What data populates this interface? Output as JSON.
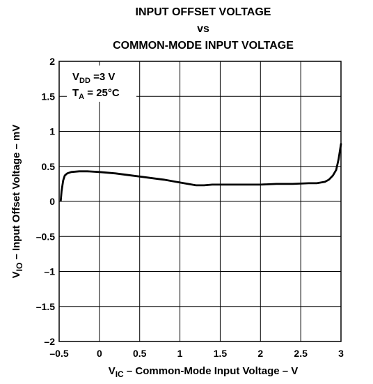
{
  "chart_data": {
    "type": "line",
    "title": [
      "INPUT OFFSET VOLTAGE",
      "vs",
      "COMMON-MODE INPUT VOLTAGE"
    ],
    "xlabel": {
      "sym": "V",
      "sub": "IC",
      "text": " – Common-Mode Input Voltage – V"
    },
    "ylabel": {
      "sym": "V",
      "sub": "IO",
      "text": " – Input Offset Voltage – mV"
    },
    "xlim": [
      -0.5,
      3
    ],
    "ylim": [
      -2,
      2
    ],
    "x_ticks": [
      -0.5,
      0,
      0.5,
      1,
      1.5,
      2,
      2.5,
      3
    ],
    "x_tick_labels": [
      "–0.5",
      "0",
      "0.5",
      "1",
      "1.5",
      "2",
      "2.5",
      "3"
    ],
    "y_ticks": [
      2,
      1.5,
      1,
      0.5,
      0,
      -0.5,
      -1,
      -1.5,
      -2
    ],
    "y_tick_labels": [
      "2",
      "1.5",
      "1",
      "0.5",
      "0",
      "–0.5",
      "–1",
      "–1.5",
      "–2"
    ],
    "grid": true,
    "annotations": [
      {
        "sym": "V",
        "sub": "DD",
        "text": " =3 V"
      },
      {
        "sym": "T",
        "sub": "A",
        "text": " = 25°C"
      }
    ],
    "series": [
      {
        "x": [
          -0.48,
          -0.47,
          -0.45,
          -0.43,
          -0.4,
          -0.35,
          -0.25,
          -0.15,
          0,
          0.2,
          0.4,
          0.6,
          0.8,
          1.0,
          1.1,
          1.2,
          1.3,
          1.4,
          1.6,
          1.8,
          2.0,
          2.2,
          2.4,
          2.6,
          2.7,
          2.8,
          2.85,
          2.9,
          2.94,
          2.97,
          3.0
        ],
        "y": [
          0.01,
          0.15,
          0.3,
          0.37,
          0.4,
          0.42,
          0.43,
          0.43,
          0.42,
          0.4,
          0.37,
          0.34,
          0.31,
          0.27,
          0.25,
          0.23,
          0.23,
          0.24,
          0.24,
          0.24,
          0.24,
          0.25,
          0.25,
          0.26,
          0.26,
          0.28,
          0.31,
          0.37,
          0.45,
          0.6,
          0.82
        ]
      }
    ]
  }
}
